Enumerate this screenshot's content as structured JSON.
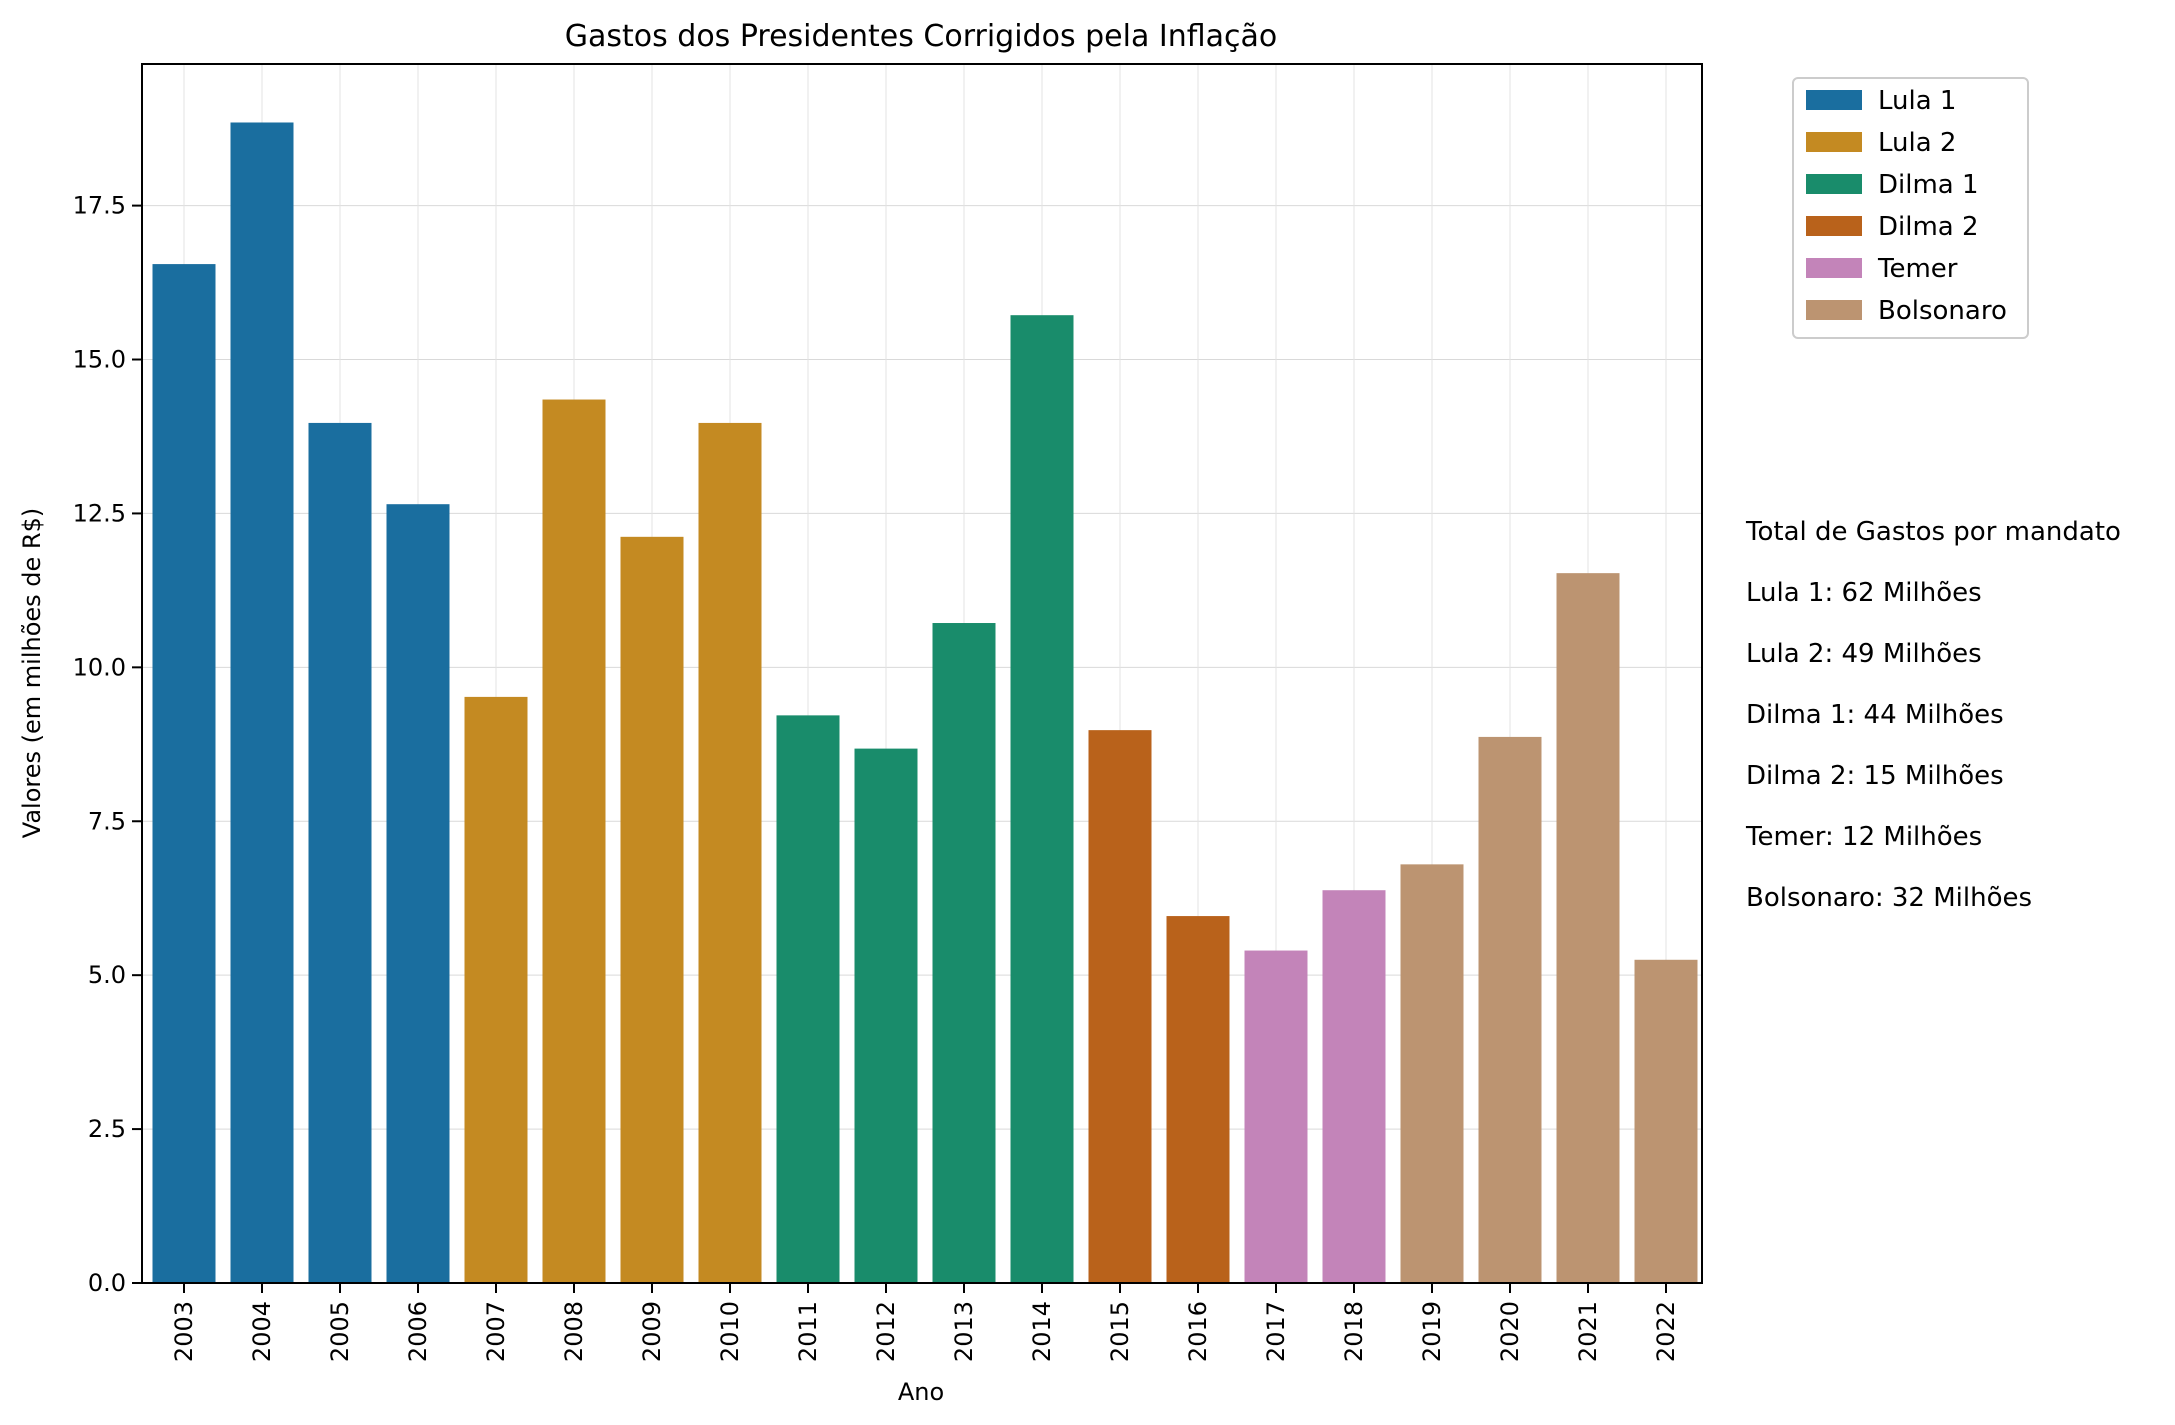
{
  "chart_data": {
    "type": "bar",
    "title": "Gastos dos Presidentes Corrigidos pela Inflação",
    "xlabel": "Ano",
    "ylabel": "Valores (em milhões de R$)",
    "ylim": [
      0,
      19.8
    ],
    "yticks": [
      "0.0",
      "2.5",
      "5.0",
      "7.5",
      "10.0",
      "12.5",
      "15.0",
      "17.5"
    ],
    "grid": true,
    "legend_position": "outside-top-right",
    "categories": [
      "2003",
      "2004",
      "2005",
      "2006",
      "2007",
      "2008",
      "2009",
      "2010",
      "2011",
      "2012",
      "2013",
      "2014",
      "2015",
      "2016",
      "2017",
      "2018",
      "2019",
      "2020",
      "2021",
      "2022"
    ],
    "values": [
      16.55,
      18.85,
      13.97,
      12.65,
      9.52,
      14.35,
      12.12,
      13.97,
      9.22,
      8.68,
      10.72,
      15.72,
      8.98,
      5.96,
      5.4,
      6.38,
      6.8,
      8.87,
      11.53,
      5.25
    ],
    "groups": [
      0,
      0,
      0,
      0,
      1,
      1,
      1,
      1,
      2,
      2,
      2,
      2,
      3,
      3,
      4,
      4,
      5,
      5,
      5,
      5
    ],
    "legend": [
      {
        "name": "Lula 1",
        "color": "#1a6e9f"
      },
      {
        "name": "Lula 2",
        "color": "#c48a22"
      },
      {
        "name": "Dilma 1",
        "color": "#198c6b"
      },
      {
        "name": "Dilma 2",
        "color": "#b9621b"
      },
      {
        "name": "Temer",
        "color": "#c384b9"
      },
      {
        "name": "Bolsonaro",
        "color": "#bc9471"
      }
    ],
    "annotations": [
      "Total de Gastos por mandato",
      "Lula 1: 62 Milhões",
      "Lula 2: 49 Milhões",
      "Dilma 1: 44 Milhões",
      "Dilma 2: 15 Milhões",
      "Temer: 12 Milhões",
      "Bolsonaro: 32 Milhões"
    ]
  }
}
